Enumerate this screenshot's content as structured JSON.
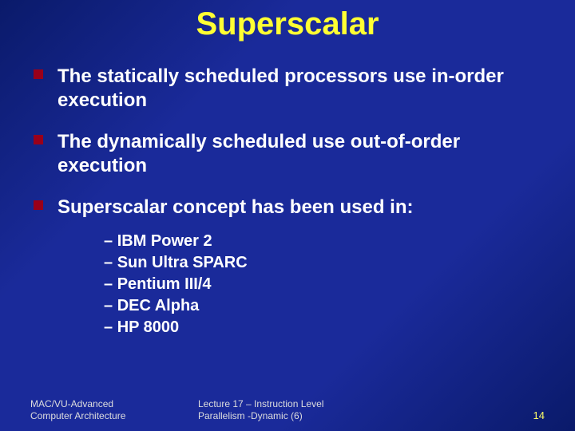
{
  "title": {
    "text": "Superscalar",
    "color": "#ffff33",
    "fontsize": 40
  },
  "bullets": {
    "fontsize": 24,
    "text_color": "#ffffff",
    "marker_color": "#99001a",
    "items": [
      {
        "html": "The statically scheduled processors use in-order execution"
      },
      {
        "html": "The dynamically scheduled use out-of-order execution"
      },
      {
        "html": "Superscalar concept has been used in:"
      }
    ]
  },
  "sublist": {
    "fontsize": 20,
    "items": [
      "IBM Power 2",
      "Sun Ultra SPARC",
      "Pentium III/4",
      "DEC Alpha",
      "HP 8000"
    ]
  },
  "footer": {
    "left_line1": "MAC/VU-Advanced",
    "left_line2": "Computer Architecture",
    "center_line1": "Lecture 17 – Instruction Level",
    "center_line2": "Parallelism -Dynamic (6)",
    "page": "14",
    "page_color": "#ffff66"
  },
  "background": {
    "gradient_from": "#0a1a6a",
    "gradient_mid": "#1a2a9a",
    "gradient_to": "#0a1a6a"
  }
}
